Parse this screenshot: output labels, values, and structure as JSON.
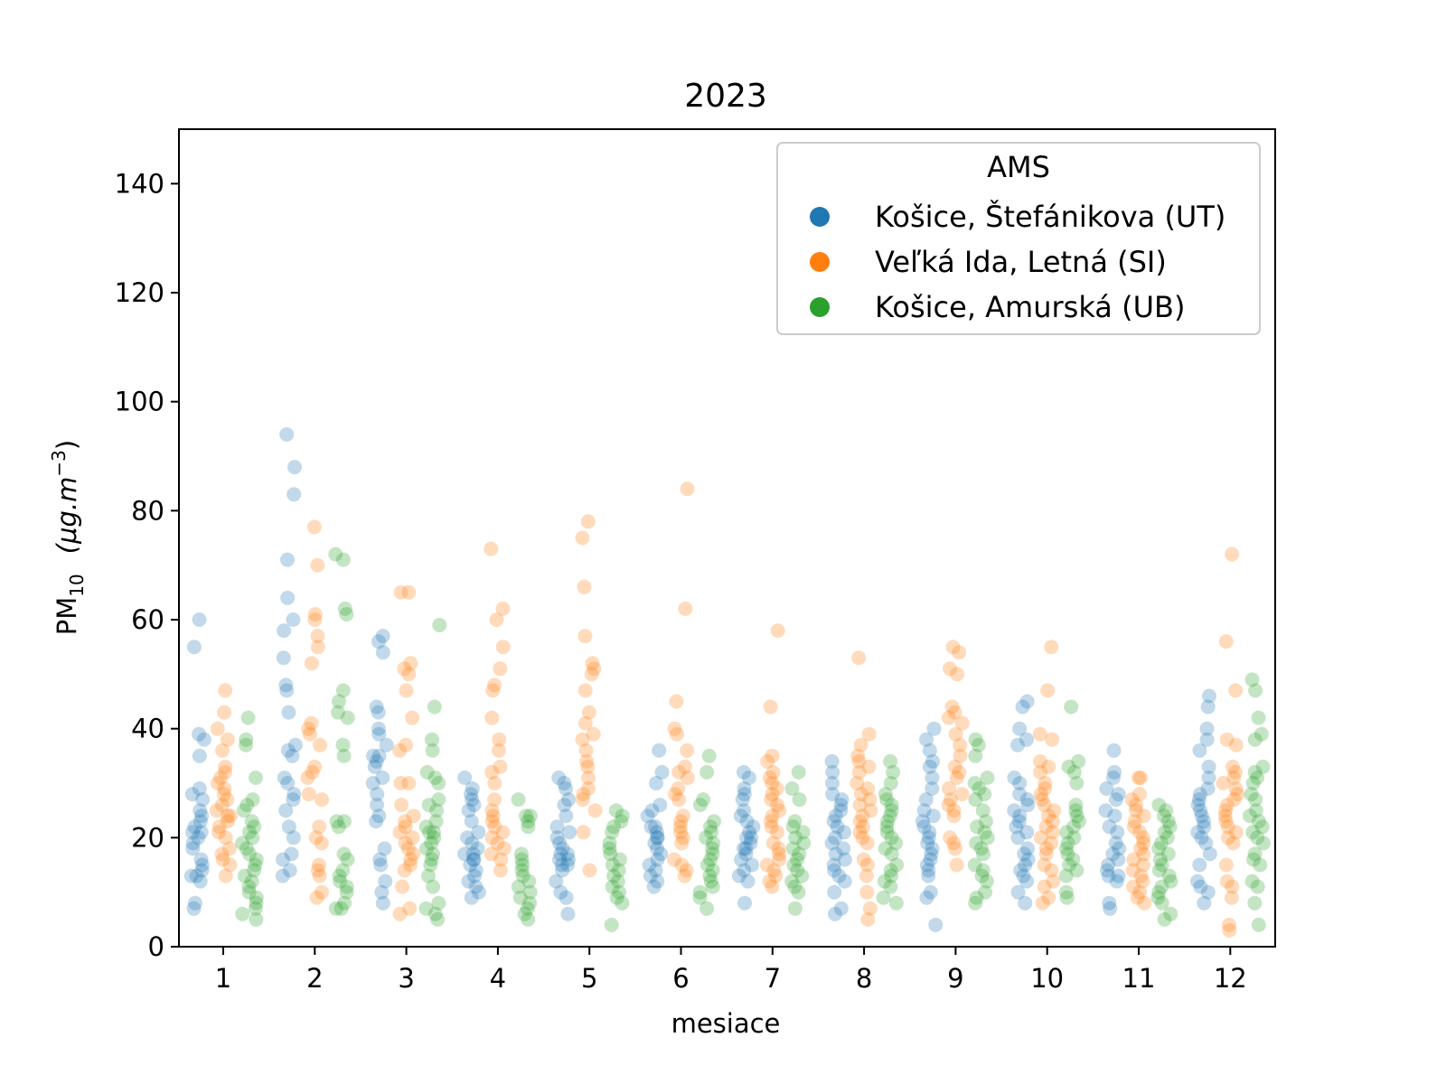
{
  "chart_data": {
    "type": "scatter",
    "title": "2023",
    "xlabel": "mesiace",
    "ylabel_main": "PM",
    "ylabel_sub": "10",
    "ylabel_unit": "(μg.m",
    "ylabel_unit_exp": "−3",
    "ylabel_unit_close": ")",
    "ylim": [
      0,
      150
    ],
    "yticks": [
      "0",
      "20",
      "40",
      "60",
      "80",
      "100",
      "120",
      "140"
    ],
    "categories": [
      "1",
      "2",
      "3",
      "4",
      "5",
      "6",
      "7",
      "8",
      "9",
      "10",
      "11",
      "12"
    ],
    "legend": {
      "title": "AMS",
      "placement": "top-right"
    },
    "grid": false,
    "series": [
      {
        "name": "Košice, Štefánikova (UT)",
        "color": "#1f77b4",
        "values": [
          [
            60,
            55,
            39,
            38,
            35,
            29,
            28,
            27,
            25,
            24,
            23,
            22,
            21,
            21,
            20,
            19,
            18,
            16,
            15,
            14,
            13,
            13,
            12,
            8,
            7
          ],
          [
            94,
            88,
            83,
            71,
            64,
            60,
            58,
            53,
            48,
            47,
            43,
            37,
            36,
            35,
            31,
            30,
            28,
            27,
            25,
            22,
            20,
            17,
            16,
            14,
            13
          ],
          [
            57,
            56,
            54,
            44,
            43,
            40,
            39,
            37,
            35,
            35,
            34,
            33,
            31,
            30,
            28,
            26,
            24,
            23,
            18,
            16,
            15,
            12,
            10,
            8
          ],
          [
            31,
            29,
            28,
            27,
            26,
            25,
            23,
            21,
            20,
            19,
            18,
            17,
            17,
            16,
            16,
            15,
            14,
            13,
            12,
            11,
            10,
            9
          ],
          [
            31,
            30,
            29,
            27,
            26,
            24,
            22,
            21,
            20,
            19,
            18,
            17,
            17,
            16,
            16,
            15,
            15,
            14,
            12,
            10,
            9,
            6
          ],
          [
            36,
            32,
            30,
            26,
            25,
            24,
            22,
            22,
            21,
            20,
            20,
            19,
            18,
            17,
            16,
            15,
            14,
            13,
            12,
            11
          ],
          [
            32,
            31,
            29,
            28,
            27,
            25,
            24,
            23,
            22,
            21,
            20,
            20,
            19,
            18,
            18,
            17,
            16,
            15,
            14,
            13,
            12,
            8
          ],
          [
            34,
            32,
            30,
            28,
            27,
            26,
            25,
            24,
            23,
            22,
            21,
            20,
            19,
            18,
            17,
            16,
            15,
            14,
            13,
            12,
            10,
            7,
            6
          ],
          [
            40,
            38,
            36,
            34,
            33,
            31,
            29,
            27,
            25,
            24,
            23,
            22,
            21,
            20,
            19,
            18,
            17,
            16,
            15,
            14,
            13,
            10,
            9,
            4
          ],
          [
            45,
            44,
            40,
            38,
            37,
            31,
            30,
            28,
            27,
            26,
            25,
            24,
            23,
            22,
            21,
            20,
            18,
            17,
            16,
            15,
            14,
            13,
            12,
            10,
            8
          ],
          [
            36,
            32,
            31,
            29,
            28,
            27,
            25,
            24,
            22,
            21,
            19,
            18,
            17,
            16,
            15,
            14,
            13,
            13,
            12,
            8,
            7
          ],
          [
            46,
            44,
            40,
            38,
            36,
            33,
            31,
            29,
            28,
            27,
            26,
            25,
            24,
            23,
            22,
            21,
            20,
            19,
            17,
            15,
            12,
            11,
            10,
            8
          ]
        ]
      },
      {
        "name": "Veľká Ida, Letná (SI)",
        "color": "#ff7f0e",
        "values": [
          [
            47,
            43,
            40,
            38,
            36,
            33,
            32,
            31,
            30,
            29,
            28,
            27,
            26,
            25,
            24,
            24,
            23,
            22,
            21,
            20,
            18,
            17,
            16,
            15,
            13
          ],
          [
            77,
            70,
            61,
            60,
            57,
            55,
            52,
            41,
            40,
            39,
            37,
            33,
            32,
            31,
            28,
            27,
            22,
            20,
            19,
            15,
            14,
            13,
            10,
            9
          ],
          [
            65,
            65,
            52,
            51,
            50,
            47,
            42,
            37,
            36,
            30,
            30,
            26,
            24,
            23,
            22,
            21,
            20,
            19,
            18,
            17,
            16,
            15,
            14,
            11,
            7,
            6
          ],
          [
            73,
            62,
            60,
            55,
            51,
            48,
            47,
            42,
            38,
            36,
            33,
            32,
            30,
            27,
            25,
            24,
            23,
            22,
            21,
            20,
            19,
            18,
            17,
            16,
            14
          ],
          [
            78,
            75,
            66,
            57,
            52,
            51,
            50,
            47,
            43,
            41,
            39,
            38,
            36,
            34,
            33,
            31,
            29,
            28,
            27,
            25,
            21,
            14
          ],
          [
            84,
            62,
            45,
            40,
            39,
            36,
            33,
            32,
            31,
            29,
            28,
            27,
            24,
            23,
            22,
            21,
            20,
            19,
            16,
            15,
            14,
            13
          ],
          [
            58,
            44,
            35,
            34,
            32,
            31,
            30,
            29,
            28,
            27,
            26,
            25,
            24,
            23,
            22,
            21,
            19,
            18,
            17,
            16,
            15,
            14,
            13,
            12,
            11
          ],
          [
            53,
            39,
            37,
            35,
            34,
            33,
            32,
            30,
            29,
            28,
            27,
            26,
            25,
            24,
            23,
            22,
            21,
            20,
            19,
            16,
            15,
            13,
            10,
            7,
            5
          ],
          [
            55,
            54,
            51,
            50,
            44,
            43,
            42,
            41,
            39,
            37,
            35,
            33,
            32,
            31,
            29,
            28,
            27,
            26,
            25,
            24,
            20,
            19,
            18,
            15
          ],
          [
            55,
            47,
            39,
            38,
            34,
            33,
            32,
            30,
            29,
            28,
            27,
            26,
            25,
            24,
            23,
            22,
            21,
            20,
            19,
            18,
            17,
            15,
            14,
            12,
            11,
            9,
            8
          ],
          [
            31,
            31,
            28,
            27,
            26,
            25,
            24,
            23,
            22,
            21,
            20,
            19,
            18,
            17,
            16,
            15,
            14,
            13,
            12,
            11,
            10,
            9,
            8
          ],
          [
            72,
            56,
            47,
            38,
            37,
            33,
            32,
            31,
            30,
            29,
            28,
            27,
            26,
            25,
            24,
            23,
            22,
            21,
            20,
            19,
            15,
            12,
            11,
            9,
            4,
            3
          ]
        ]
      },
      {
        "name": "Košice, Amurská (UB)",
        "color": "#2ca02c",
        "values": [
          [
            42,
            38,
            37,
            31,
            27,
            26,
            25,
            23,
            22,
            21,
            20,
            19,
            18,
            17,
            16,
            15,
            14,
            13,
            12,
            11,
            10,
            9,
            8,
            7,
            6,
            5
          ],
          [
            72,
            71,
            62,
            61,
            47,
            45,
            43,
            42,
            37,
            35,
            23,
            23,
            22,
            17,
            16,
            14,
            13,
            12,
            11,
            10,
            8,
            7,
            7
          ],
          [
            59,
            44,
            38,
            36,
            32,
            31,
            30,
            27,
            26,
            25,
            23,
            22,
            21,
            21,
            20,
            19,
            18,
            17,
            16,
            15,
            13,
            11,
            8,
            7,
            6,
            5
          ],
          [
            27,
            24,
            24,
            23,
            22,
            17,
            16,
            15,
            14,
            13,
            12,
            11,
            10,
            9,
            8,
            7,
            6,
            5
          ],
          [
            25,
            24,
            23,
            22,
            21,
            19,
            18,
            17,
            16,
            15,
            14,
            13,
            12,
            11,
            10,
            9,
            8,
            4
          ],
          [
            35,
            32,
            27,
            26,
            23,
            22,
            21,
            20,
            19,
            18,
            17,
            16,
            15,
            14,
            13,
            12,
            11,
            10,
            9,
            7
          ],
          [
            32,
            29,
            27,
            23,
            22,
            21,
            20,
            19,
            18,
            17,
            16,
            15,
            14,
            13,
            12,
            11,
            10,
            7
          ],
          [
            34,
            32,
            30,
            28,
            27,
            26,
            25,
            24,
            23,
            22,
            21,
            20,
            19,
            18,
            17,
            15,
            14,
            13,
            12,
            11,
            9,
            8
          ],
          [
            38,
            37,
            35,
            31,
            30,
            29,
            28,
            27,
            25,
            23,
            22,
            21,
            20,
            19,
            18,
            17,
            15,
            14,
            13,
            12,
            10,
            9,
            8
          ],
          [
            44,
            34,
            33,
            32,
            30,
            26,
            25,
            24,
            23,
            22,
            21,
            20,
            19,
            18,
            17,
            16,
            15,
            14,
            13,
            10,
            9
          ],
          [
            26,
            25,
            24,
            23,
            22,
            21,
            20,
            19,
            18,
            17,
            16,
            15,
            14,
            13,
            12,
            11,
            10,
            9,
            8,
            6,
            5
          ],
          [
            49,
            47,
            42,
            39,
            38,
            33,
            32,
            31,
            30,
            28,
            27,
            25,
            24,
            23,
            22,
            21,
            20,
            19,
            17,
            16,
            15,
            12,
            11,
            8,
            4
          ]
        ]
      }
    ]
  }
}
